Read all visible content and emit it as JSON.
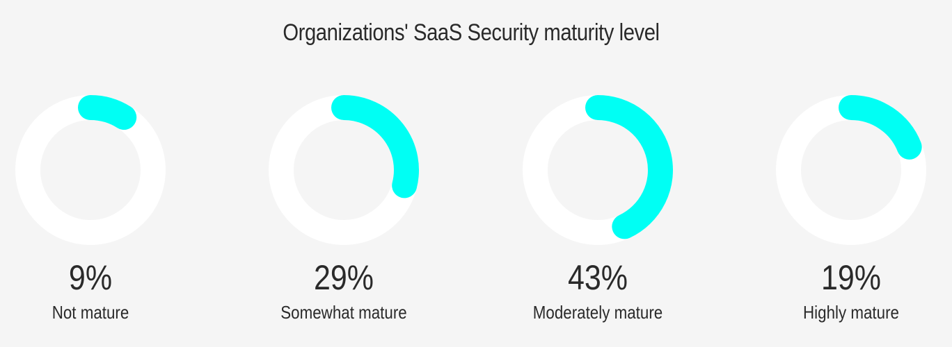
{
  "chart_data": {
    "type": "pie",
    "title": "Organizations' SaaS Security maturity level",
    "series": [
      {
        "name": "Not mature",
        "value": 9,
        "display": "9%"
      },
      {
        "name": "Somewhat mature",
        "value": 29,
        "display": "29%"
      },
      {
        "name": "Moderately mature",
        "value": 43,
        "display": "43%"
      },
      {
        "name": "Highly mature",
        "value": 19,
        "display": "19%"
      }
    ],
    "max": 100,
    "colors": {
      "fill": "#00fff4",
      "track": "#ffffff",
      "background": "#f5f5f5"
    }
  }
}
